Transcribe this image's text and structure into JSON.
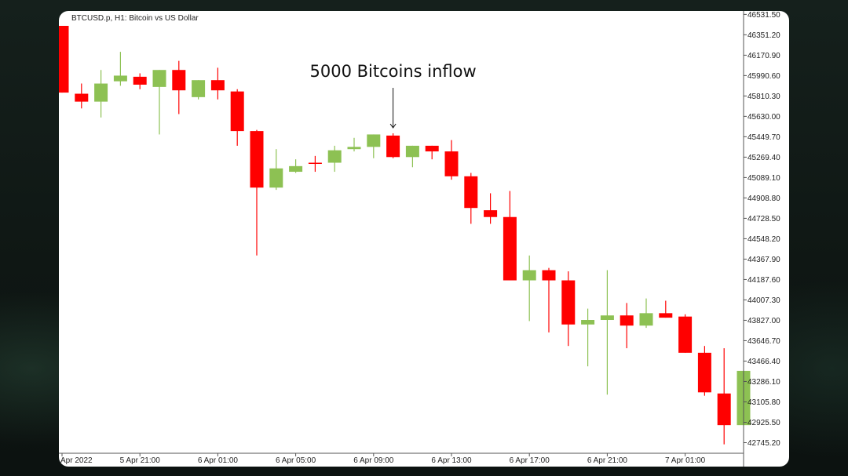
{
  "chart_data": {
    "type": "candlestick",
    "title": "BTCUSD.p, H1: Bitcoin vs US Dollar",
    "annotation": "5000 Bitcoins inflow",
    "annotation_index": 17,
    "colors": {
      "up": "#8dc153",
      "down": "#ff0000",
      "axis": "#555555",
      "text": "#222222"
    },
    "ylim": [
      42651.5,
      46561.5
    ],
    "y_ticks": [
      "46531.50",
      "46351.20",
      "46170.90",
      "45990.60",
      "45810.30",
      "45630.00",
      "45449.70",
      "45269.40",
      "45089.10",
      "44908.80",
      "44728.50",
      "44548.20",
      "44367.90",
      "44187.60",
      "44007.30",
      "43827.00",
      "43646.70",
      "43466.40",
      "43286.10",
      "43105.80",
      "42925.50",
      "42745.20"
    ],
    "x_tick_labels": [
      {
        "index": 0,
        "label": "Apr 2022"
      },
      {
        "index": 4,
        "label": "5 Apr 21:00"
      },
      {
        "index": 8,
        "label": "6 Apr 01:00"
      },
      {
        "index": 12,
        "label": "6 Apr 05:00"
      },
      {
        "index": 16,
        "label": "6 Apr 09:00"
      },
      {
        "index": 20,
        "label": "6 Apr 13:00"
      },
      {
        "index": 24,
        "label": "6 Apr 17:00"
      },
      {
        "index": 28,
        "label": "6 Apr 21:00"
      },
      {
        "index": 32,
        "label": "7 Apr 01:00"
      }
    ],
    "candles": [
      {
        "open": 46430,
        "high": 46430,
        "low": 45840,
        "close": 45840
      },
      {
        "open": 45830,
        "high": 45920,
        "low": 45700,
        "close": 45760
      },
      {
        "open": 45760,
        "high": 46040,
        "low": 45620,
        "close": 45920
      },
      {
        "open": 45940,
        "high": 46200,
        "low": 45900,
        "close": 45990
      },
      {
        "open": 45980,
        "high": 46010,
        "low": 45870,
        "close": 45910
      },
      {
        "open": 45890,
        "high": 46040,
        "low": 45470,
        "close": 46040
      },
      {
        "open": 46040,
        "high": 46120,
        "low": 45650,
        "close": 45860
      },
      {
        "open": 45800,
        "high": 45950,
        "low": 45780,
        "close": 45950
      },
      {
        "open": 45950,
        "high": 46060,
        "low": 45780,
        "close": 45860
      },
      {
        "open": 45850,
        "high": 45870,
        "low": 45370,
        "close": 45500
      },
      {
        "open": 45500,
        "high": 45510,
        "low": 44400,
        "close": 45000
      },
      {
        "open": 45000,
        "high": 45340,
        "low": 44980,
        "close": 45170
      },
      {
        "open": 45140,
        "high": 45250,
        "low": 45130,
        "close": 45190
      },
      {
        "open": 45220,
        "high": 45280,
        "low": 45140,
        "close": 45210
      },
      {
        "open": 45220,
        "high": 45370,
        "low": 45140,
        "close": 45330
      },
      {
        "open": 45340,
        "high": 45440,
        "low": 45320,
        "close": 45360
      },
      {
        "open": 45360,
        "high": 45470,
        "low": 45260,
        "close": 45470
      },
      {
        "open": 45460,
        "high": 45480,
        "low": 45260,
        "close": 45270
      },
      {
        "open": 45270,
        "high": 45370,
        "low": 45180,
        "close": 45370
      },
      {
        "open": 45370,
        "high": 45370,
        "low": 45250,
        "close": 45320
      },
      {
        "open": 45320,
        "high": 45420,
        "low": 45070,
        "close": 45100
      },
      {
        "open": 45100,
        "high": 45130,
        "low": 44680,
        "close": 44820
      },
      {
        "open": 44800,
        "high": 44950,
        "low": 44680,
        "close": 44740
      },
      {
        "open": 44740,
        "high": 44970,
        "low": 44180,
        "close": 44180
      },
      {
        "open": 44180,
        "high": 44400,
        "low": 43820,
        "close": 44270
      },
      {
        "open": 44270,
        "high": 44290,
        "low": 43720,
        "close": 44180
      },
      {
        "open": 44180,
        "high": 44260,
        "low": 43600,
        "close": 43790
      },
      {
        "open": 43790,
        "high": 43930,
        "low": 43420,
        "close": 43830
      },
      {
        "open": 43830,
        "high": 44270,
        "low": 43170,
        "close": 43870
      },
      {
        "open": 43870,
        "high": 43980,
        "low": 43580,
        "close": 43780
      },
      {
        "open": 43780,
        "high": 44020,
        "low": 43760,
        "close": 43890
      },
      {
        "open": 43890,
        "high": 44000,
        "low": 43850,
        "close": 43850
      },
      {
        "open": 43860,
        "high": 43880,
        "low": 43540,
        "close": 43540
      },
      {
        "open": 43540,
        "high": 43600,
        "low": 43160,
        "close": 43190
      },
      {
        "open": 43180,
        "high": 43580,
        "low": 42730,
        "close": 42900
      },
      {
        "open": 42900,
        "high": 43380,
        "low": 42900,
        "close": 43380
      }
    ]
  }
}
